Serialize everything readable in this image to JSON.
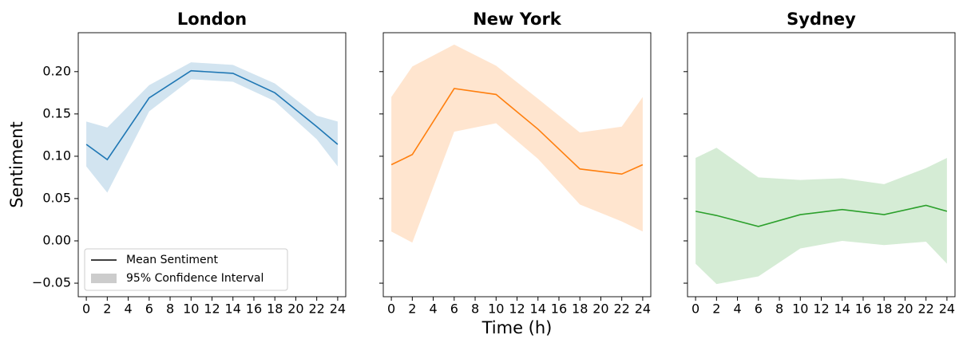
{
  "chart_data": [
    {
      "type": "line",
      "title": "London",
      "ylabel": "Sentiment",
      "x": [
        0,
        2,
        6,
        10,
        14,
        18,
        22,
        24
      ],
      "series": [
        {
          "name": "Mean Sentiment",
          "color": "#1f77b4",
          "values": [
            0.114,
            0.096,
            0.169,
            0.201,
            0.198,
            0.175,
            0.135,
            0.114
          ]
        }
      ],
      "band": {
        "name": "95% Confidence Interval",
        "color": "#1f77b4",
        "lower": [
          0.088,
          0.057,
          0.153,
          0.191,
          0.188,
          0.165,
          0.12,
          0.088
        ],
        "upper": [
          0.141,
          0.134,
          0.184,
          0.211,
          0.208,
          0.186,
          0.148,
          0.141
        ]
      },
      "legend": "lower left",
      "xlim": [
        -0.77,
        24.77
      ],
      "xticks": [
        0,
        2,
        4,
        6,
        8,
        10,
        12,
        14,
        16,
        18,
        20,
        22,
        24
      ],
      "ylim": [
        -0.066,
        0.246
      ],
      "yticks": [
        {
          "value": -0.05,
          "label": "−0.05"
        },
        {
          "value": 0,
          "label": "0.00"
        },
        {
          "value": 0.05,
          "label": "0.05"
        },
        {
          "value": 0.1,
          "label": "0.10"
        },
        {
          "value": 0.15,
          "label": "0.15"
        },
        {
          "value": 0.2,
          "label": "0.20"
        }
      ]
    },
    {
      "type": "line",
      "title": "New York",
      "xlabel": "Time (h)",
      "x": [
        0,
        2,
        6,
        10,
        14,
        18,
        22,
        24
      ],
      "series": [
        {
          "color": "#ff7f0e",
          "values": [
            0.09,
            0.102,
            0.18,
            0.173,
            0.132,
            0.085,
            0.079,
            0.09
          ]
        }
      ],
      "band": {
        "color": "#ff7f0e",
        "lower": [
          0.011,
          -0.002,
          0.129,
          0.139,
          0.097,
          0.043,
          0.023,
          0.011
        ],
        "upper": [
          0.17,
          0.206,
          0.232,
          0.207,
          0.168,
          0.128,
          0.135,
          0.17
        ]
      },
      "xlim": [
        -0.77,
        24.77
      ],
      "xticks": [
        0,
        2,
        4,
        6,
        8,
        10,
        12,
        14,
        16,
        18,
        20,
        22,
        24
      ]
    },
    {
      "type": "line",
      "title": "Sydney",
      "x": [
        0,
        2,
        6,
        10,
        14,
        18,
        22,
        24
      ],
      "series": [
        {
          "color": "#2ca02c",
          "values": [
            0.035,
            0.03,
            0.017,
            0.031,
            0.037,
            0.031,
            0.042,
            0.035
          ]
        }
      ],
      "band": {
        "color": "#2ca02c",
        "lower": [
          -0.027,
          -0.051,
          -0.042,
          -0.009,
          0.0,
          -0.005,
          -0.001,
          -0.027
        ],
        "upper": [
          0.098,
          0.11,
          0.075,
          0.072,
          0.074,
          0.067,
          0.086,
          0.098
        ]
      },
      "xlim": [
        -0.77,
        24.77
      ],
      "xticks": [
        0,
        2,
        4,
        6,
        8,
        10,
        12,
        14,
        16,
        18,
        20,
        22,
        24
      ]
    }
  ]
}
